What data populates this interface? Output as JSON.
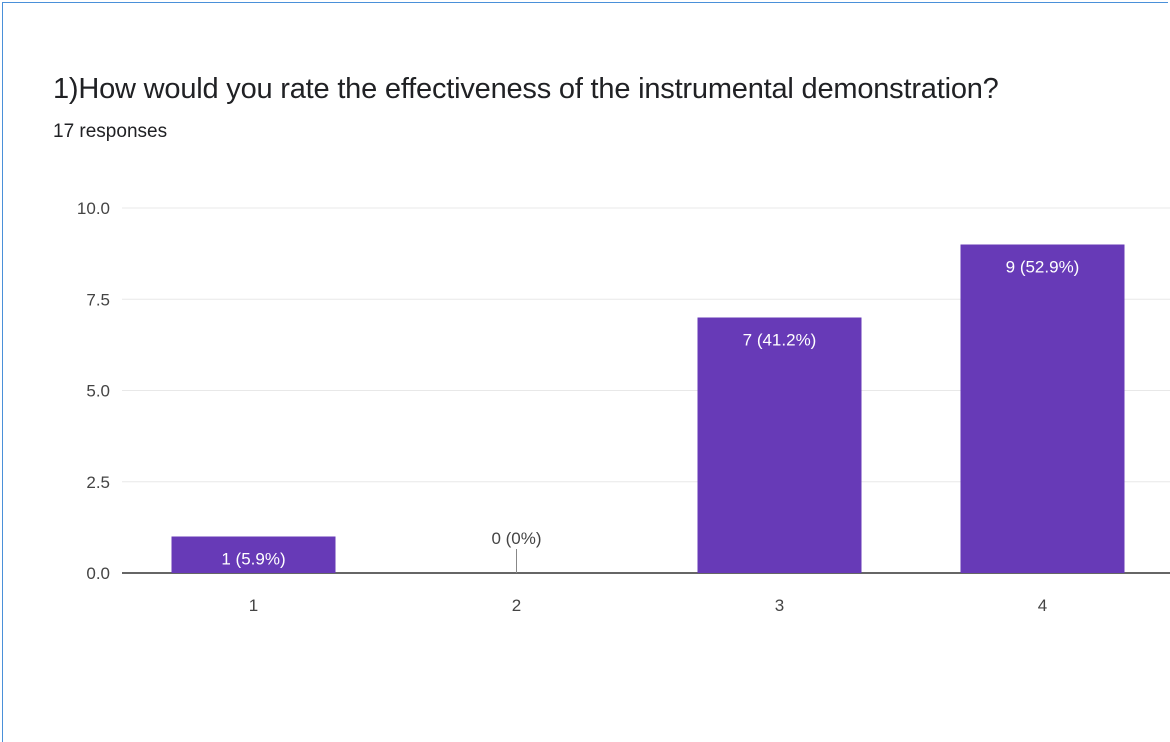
{
  "question": {
    "title": "1)How would you rate the effectiveness of the instrumental demonstration?",
    "responses": "17 responses"
  },
  "colors": {
    "bar": "#673ab7",
    "grid": "#e8e8e8",
    "axis": "#333333",
    "border": "#4a90d9"
  },
  "chart_data": {
    "type": "bar",
    "title": "1)How would you rate the effectiveness of the instrumental demonstration?",
    "categories": [
      "1",
      "2",
      "3",
      "4"
    ],
    "values": [
      1,
      0,
      7,
      9
    ],
    "data_labels": [
      "1 (5.9%)",
      "0 (0%)",
      "7 (41.2%)",
      "9 (52.9%)"
    ],
    "yticks": [
      "0.0",
      "2.5",
      "5.0",
      "7.5",
      "10.0"
    ],
    "ylim": [
      0,
      10
    ],
    "grid": true,
    "xlabel": "",
    "ylabel": ""
  }
}
